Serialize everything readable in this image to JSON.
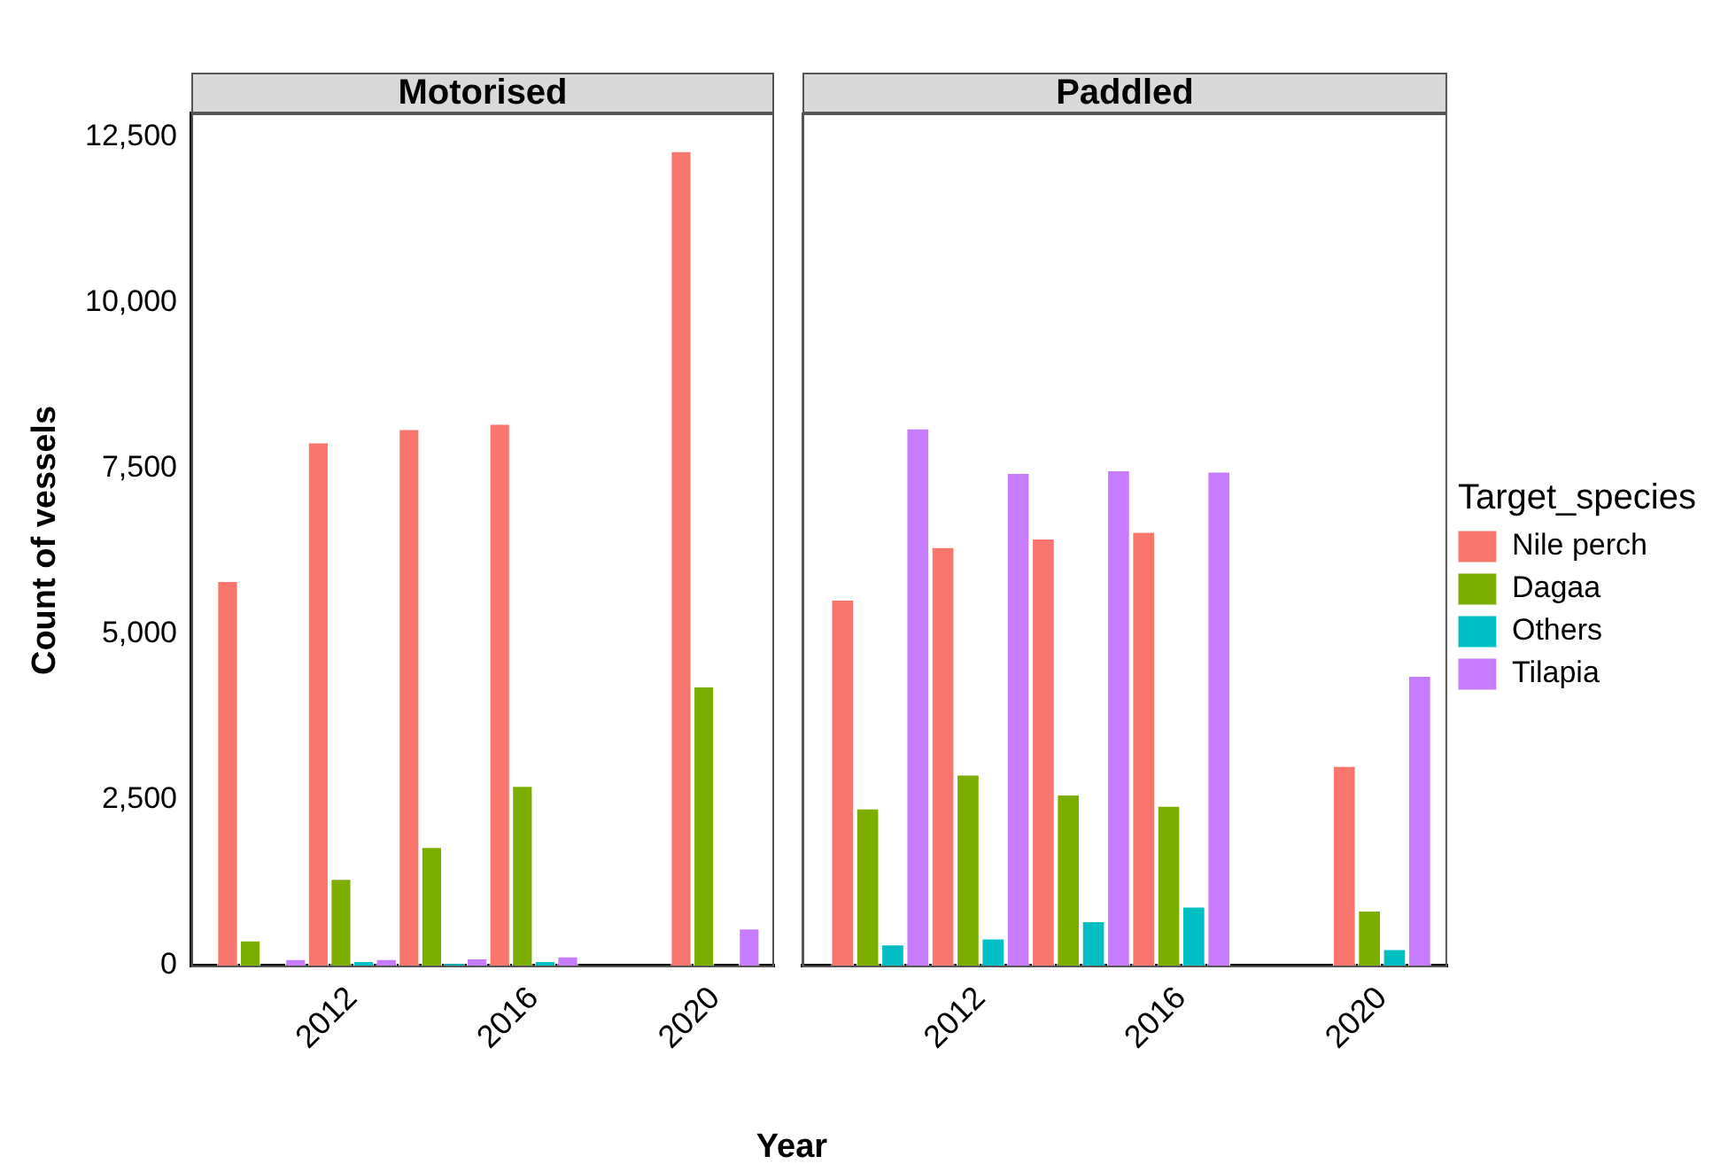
{
  "chart_data": [
    {
      "type": "bar",
      "title": "Motorised",
      "xlabel": "Year",
      "ylabel": "Count of vessels",
      "x": [
        2010,
        2012,
        2014,
        2016,
        2020
      ],
      "xlim": [
        2008.45,
        2021.3
      ],
      "xticks": [
        2012,
        2016,
        2020
      ],
      "ylim": [
        0,
        12850
      ],
      "yticks": [
        0,
        {
          "value": 2500,
          "label": "2,500"
        },
        {
          "value": 5000,
          "label": "5,000"
        },
        {
          "value": 7500,
          "label": "7,500"
        },
        {
          "value": 10000,
          "label": "10,000"
        },
        {
          "value": 12500,
          "label": "12,500"
        }
      ],
      "series": [
        {
          "color": "#f8766d",
          "values": [
            5800,
            7890,
            8090,
            8170,
            12280
          ]
        },
        {
          "color": "#7cae00",
          "values": [
            380,
            1310,
            1790,
            2710,
            4210
          ]
        },
        {
          "color": "#00bfc4",
          "values": [
            null,
            70,
            40,
            70,
            null
          ]
        },
        {
          "color": "#c77cff",
          "values": [
            100,
            100,
            110,
            140,
            560
          ]
        }
      ]
    },
    {
      "type": "bar",
      "title": "Paddled",
      "legend": "right",
      "legend_title": "Target_species",
      "tick_labels": "x",
      "x": [
        2010,
        2012,
        2014,
        2016,
        2020
      ],
      "xlim": [
        2008.45,
        2021.3
      ],
      "xticks": [
        2012,
        2016,
        2020
      ],
      "ylim": [
        0,
        12850
      ],
      "series": [
        {
          "name": "Nile perch",
          "color": "#f8766d",
          "values": [
            5520,
            6310,
            6440,
            6540,
            3010
          ]
        },
        {
          "name": "Dagaa",
          "color": "#7cae00",
          "values": [
            2370,
            2880,
            2580,
            2410,
            830
          ]
        },
        {
          "name": "Others",
          "color": "#00bfc4",
          "values": [
            320,
            410,
            670,
            890,
            250
          ]
        },
        {
          "name": "Tilapia",
          "color": "#c77cff",
          "values": [
            8100,
            7430,
            7470,
            7450,
            4370
          ]
        }
      ]
    }
  ]
}
